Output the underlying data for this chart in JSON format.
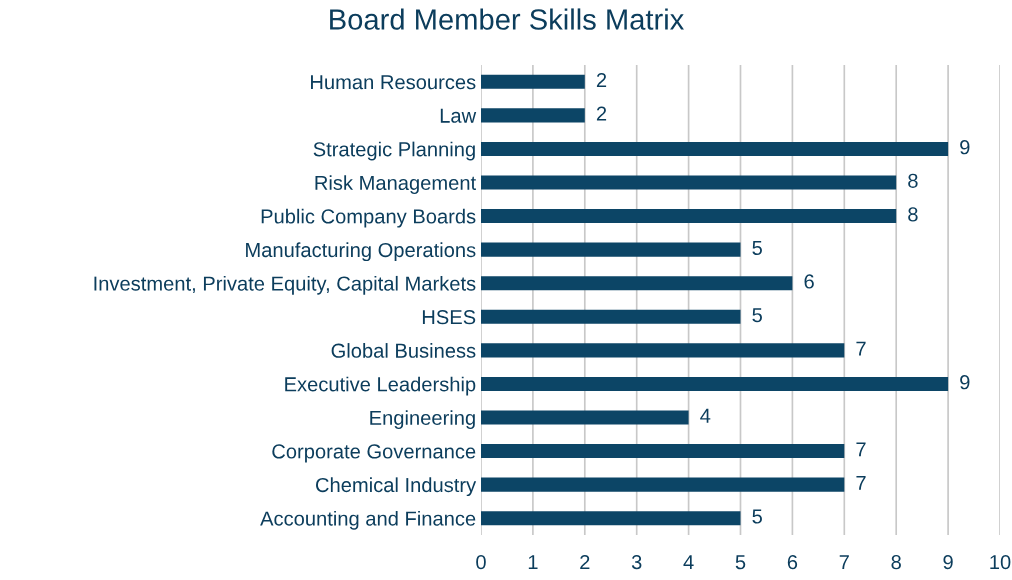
{
  "chart_data": {
    "type": "bar",
    "orientation": "horizontal",
    "title": "Board Member Skills Matrix",
    "categories": [
      "Human Resources",
      "Law",
      "Strategic Planning",
      "Risk Management",
      "Public Company Boards",
      "Manufacturing Operations",
      "Investment, Private Equity, Capital Markets",
      "HSES",
      "Global Business",
      "Executive Leadership",
      "Engineering",
      "Corporate Governance",
      "Chemical Industry",
      "Accounting and Finance"
    ],
    "values": [
      2,
      2,
      9,
      8,
      8,
      5,
      6,
      5,
      7,
      9,
      4,
      7,
      7,
      5
    ],
    "color": "#0c4566",
    "xlim": [
      0,
      10
    ],
    "xticks": [
      0,
      1,
      2,
      3,
      4,
      5,
      6,
      7,
      8,
      9,
      10
    ],
    "grid": "x",
    "data_labels": true,
    "legend": false
  }
}
